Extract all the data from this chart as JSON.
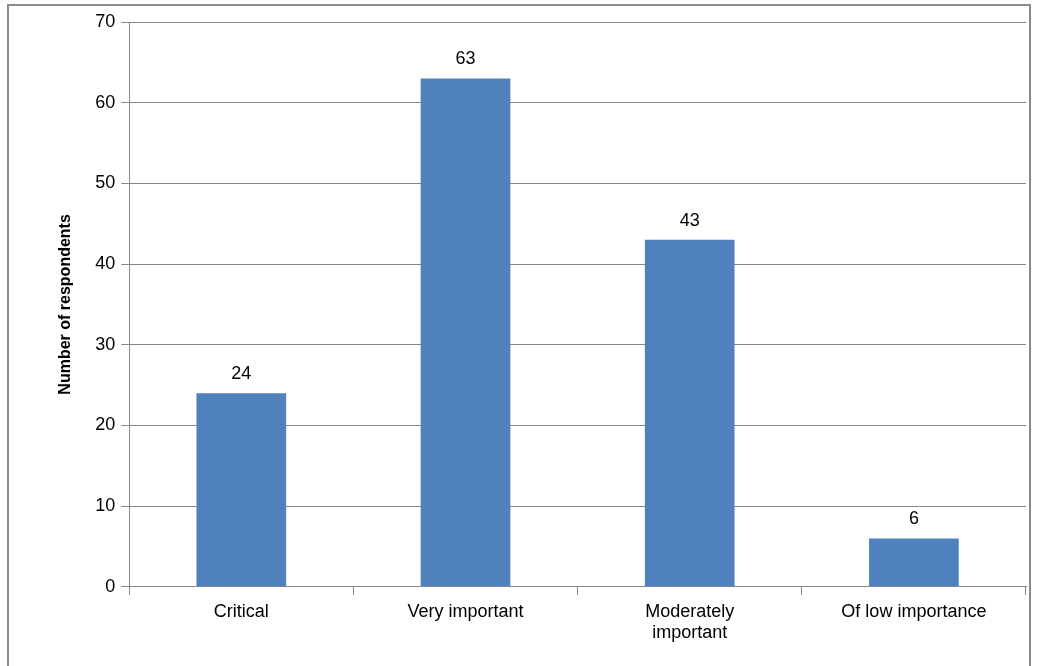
{
  "chart_data": {
    "type": "bar",
    "ylabel": "Number of respondents",
    "categories": [
      "Critical",
      "Very important",
      "Moderately important",
      "Of low importance"
    ],
    "values": [
      24,
      63,
      43,
      6
    ],
    "color": "#4f81bd",
    "ylim": [
      0,
      70
    ],
    "yticks": [
      0,
      10,
      20,
      30,
      40,
      50,
      60,
      70
    ],
    "grid": "y",
    "legend": false,
    "data_labels": true
  }
}
